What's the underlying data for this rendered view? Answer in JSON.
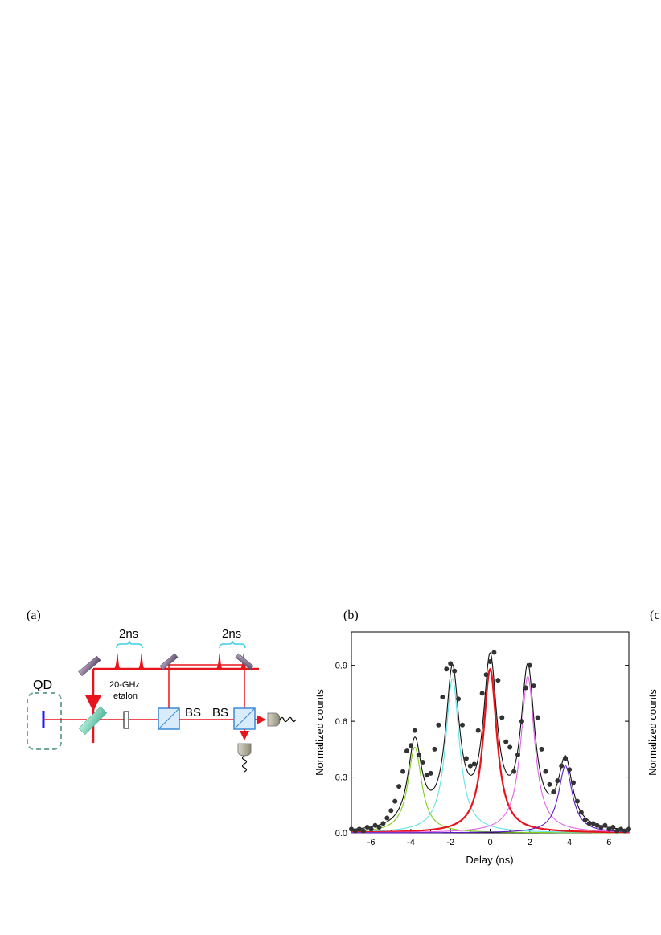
{
  "panels": {
    "a": "(a)",
    "b": "(b)",
    "c": "(c"
  },
  "schematic": {
    "qd_label": "QD",
    "pulse_separation_1": "2ns",
    "pulse_separation_2": "2ns",
    "etalon_label_1": "20-GHz",
    "etalon_label_2": "etalon",
    "bs_label_1": "BS",
    "bs_label_2": "BS"
  },
  "panel_c": {
    "ylabel_fragment": "Normalized counts"
  },
  "colors": {
    "laser": "#e8141b",
    "fit_total": "#111111",
    "peak_m4": "#7fd11c",
    "peak_m2": "#62e3e3",
    "peak_0": "#e8141b",
    "peak_p2": "#e263e6",
    "peak_p4": "#5b1cc6",
    "data_points": "#333333"
  },
  "chart_data": {
    "type": "scatter",
    "title": "",
    "xlabel": "Delay (ns)",
    "ylabel": "Normalized counts",
    "xlim": [
      -7,
      7
    ],
    "ylim": [
      0,
      1.08
    ],
    "xticks": [
      "-6",
      "-4",
      "-2",
      "0",
      "2",
      "4",
      "6"
    ],
    "yticks": [
      "0.0",
      "0.3",
      "0.6",
      "0.9"
    ],
    "peak_centers_ns": [
      -3.8,
      -1.9,
      0,
      1.9,
      3.8
    ],
    "peak_heights": [
      0.46,
      0.83,
      0.88,
      0.84,
      0.36
    ],
    "series": [
      {
        "x": [
          -7.0,
          -6.8,
          -6.6,
          -6.4,
          -6.2,
          -6.0,
          -5.8,
          -5.6,
          -5.4,
          -5.2,
          -5.0,
          -4.8,
          -4.6,
          -4.4,
          -4.2,
          -4.0,
          -3.8,
          -3.6,
          -3.4,
          -3.2,
          -3.0,
          -2.8,
          -2.6,
          -2.4,
          -2.2,
          -2.0,
          -1.8,
          -1.6,
          -1.4,
          -1.2,
          -1.0,
          -0.8,
          -0.6,
          -0.4,
          -0.2,
          0.0,
          0.2,
          0.4,
          0.6,
          0.8,
          1.0,
          1.2,
          1.4,
          1.6,
          1.8,
          2.0,
          2.2,
          2.4,
          2.6,
          2.8,
          3.0,
          3.2,
          3.4,
          3.6,
          3.8,
          4.0,
          4.2,
          4.4,
          4.6,
          4.8,
          5.0,
          5.2,
          5.4,
          5.6,
          5.8,
          6.0,
          6.2,
          6.4,
          6.6,
          6.8,
          7.0
        ],
        "y": [
          0.02,
          0.01,
          0.02,
          0.01,
          0.03,
          0.02,
          0.04,
          0.03,
          0.05,
          0.08,
          0.12,
          0.17,
          0.25,
          0.33,
          0.44,
          0.47,
          0.55,
          0.42,
          0.38,
          0.31,
          0.32,
          0.45,
          0.58,
          0.73,
          0.88,
          0.91,
          0.87,
          0.72,
          0.58,
          0.4,
          0.36,
          0.37,
          0.55,
          0.75,
          0.85,
          0.92,
          0.97,
          0.82,
          0.62,
          0.49,
          0.46,
          0.33,
          0.42,
          0.6,
          0.78,
          0.9,
          0.79,
          0.62,
          0.45,
          0.33,
          0.26,
          0.22,
          0.28,
          0.36,
          0.4,
          0.34,
          0.27,
          0.17,
          0.11,
          0.07,
          0.05,
          0.05,
          0.04,
          0.03,
          0.04,
          0.02,
          0.03,
          0.01,
          0.02,
          0.01,
          0.02
        ]
      }
    ]
  }
}
